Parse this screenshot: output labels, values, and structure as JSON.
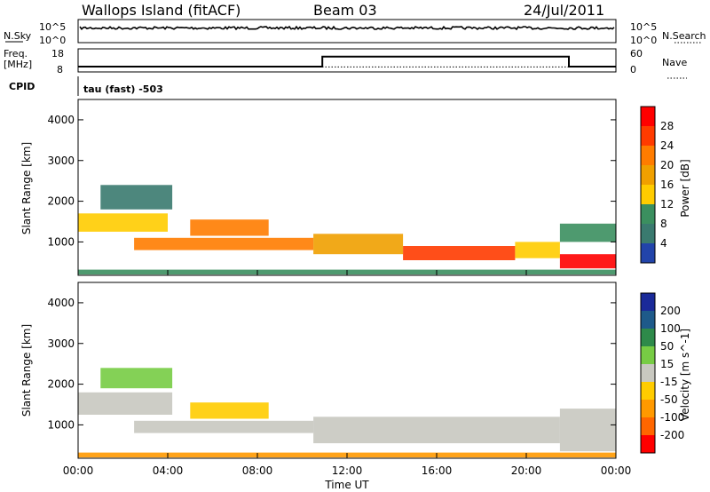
{
  "header": {
    "station": "Wallops Island (fitACF)",
    "beam": "Beam 03",
    "date": "24/Jul/2011"
  },
  "top_panels": {
    "nsky_label": "N.Sky",
    "nsearch_label": "N.Search",
    "freq_label_1": "Freq.",
    "freq_label_2": "[MHz]",
    "nave_label": "Nave",
    "cpid_label": "CPID",
    "cpid_text": "tau (fast) -503",
    "noise_ticks_left": [
      "10^5",
      "10^0"
    ],
    "noise_ticks_right": [
      "10^5",
      "10^0"
    ],
    "freq_ticks": [
      "18",
      "8"
    ],
    "nave_ticks": [
      "60",
      "0"
    ]
  },
  "power_colorbar": {
    "label": "Power [dB]",
    "ticks": [
      "28",
      "24",
      "20",
      "16",
      "12",
      "8",
      "4"
    ],
    "colors": [
      "#ff0000",
      "#ff3b00",
      "#ff7c00",
      "#f0a000",
      "#ffcc00",
      "#3b8f5f",
      "#3a7a6f",
      "#2244aa",
      "#0000ff"
    ]
  },
  "velocity_colorbar": {
    "label": "Velocity [m s^-1]",
    "ticks": [
      "200",
      "100",
      "50",
      "15",
      "-15",
      "-50",
      "-100",
      "-200"
    ],
    "colors": [
      "#1a2a99",
      "#1e5a8a",
      "#2e8a4a",
      "#77cc44",
      "#c8c8c0",
      "#ffcc00",
      "#ff9900",
      "#ff6600",
      "#ff0000"
    ]
  },
  "x_axis": {
    "label": "Time UT",
    "ticks": [
      "00:00",
      "04:00",
      "08:00",
      "12:00",
      "16:00",
      "20:00",
      "00:00"
    ]
  },
  "chart_data": {
    "type": "heatmap",
    "x_range_hours": [
      0,
      24
    ],
    "y_range_km": [
      180,
      4500
    ],
    "ylabel": "Slant Range [km]",
    "xlabel": "Time UT",
    "y_ticks": [
      1000,
      2000,
      3000,
      4000
    ],
    "freq_mhz_series": {
      "x_hours": [
        0,
        10.9,
        10.9,
        21.9,
        21.9,
        24
      ],
      "values": [
        10.3,
        10.3,
        14.6,
        14.6,
        10.3,
        10.3
      ]
    },
    "nave_series": {
      "x_hours": [
        0,
        24
      ],
      "values": [
        13,
        13
      ]
    },
    "power_regions": [
      {
        "t0": 0.0,
        "t1": 4.0,
        "r0": 1250,
        "r1": 1700,
        "level": 0.45
      },
      {
        "t0": 1.0,
        "t1": 4.2,
        "r0": 1800,
        "r1": 2400,
        "level": 0.25
      },
      {
        "t0": 2.5,
        "t1": 10.5,
        "r0": 800,
        "r1": 1100,
        "level": 0.75
      },
      {
        "t0": 5.0,
        "t1": 8.5,
        "r0": 1150,
        "r1": 1550,
        "level": 0.7
      },
      {
        "t0": 10.5,
        "t1": 14.5,
        "r0": 700,
        "r1": 1200,
        "level": 0.65
      },
      {
        "t0": 14.5,
        "t1": 19.5,
        "r0": 550,
        "r1": 900,
        "level": 0.9
      },
      {
        "t0": 19.5,
        "t1": 21.5,
        "r0": 600,
        "r1": 1000,
        "level": 0.55
      },
      {
        "t0": 21.5,
        "t1": 24.0,
        "r0": 350,
        "r1": 700,
        "level": 0.95
      },
      {
        "t0": 21.5,
        "t1": 24.0,
        "r0": 1000,
        "r1": 1450,
        "level": 0.4
      },
      {
        "t0": 0.0,
        "t1": 24.0,
        "r0": 200,
        "r1": 320,
        "level": 0.35
      }
    ],
    "velocity_regions": [
      {
        "t0": 0.0,
        "t1": 4.2,
        "r0": 1250,
        "r1": 1800,
        "v": 0
      },
      {
        "t0": 1.0,
        "t1": 4.2,
        "r0": 1900,
        "r1": 2400,
        "v": 40
      },
      {
        "t0": 2.5,
        "t1": 10.5,
        "r0": 800,
        "r1": 1100,
        "v": 0
      },
      {
        "t0": 5.0,
        "t1": 8.5,
        "r0": 1150,
        "r1": 1550,
        "v": -40
      },
      {
        "t0": 10.5,
        "t1": 21.5,
        "r0": 550,
        "r1": 1200,
        "v": 0
      },
      {
        "t0": 21.5,
        "t1": 24.0,
        "r0": 350,
        "r1": 1400,
        "v": 0
      },
      {
        "t0": 0.0,
        "t1": 24.0,
        "r0": 200,
        "r1": 320,
        "v": -60
      }
    ]
  }
}
